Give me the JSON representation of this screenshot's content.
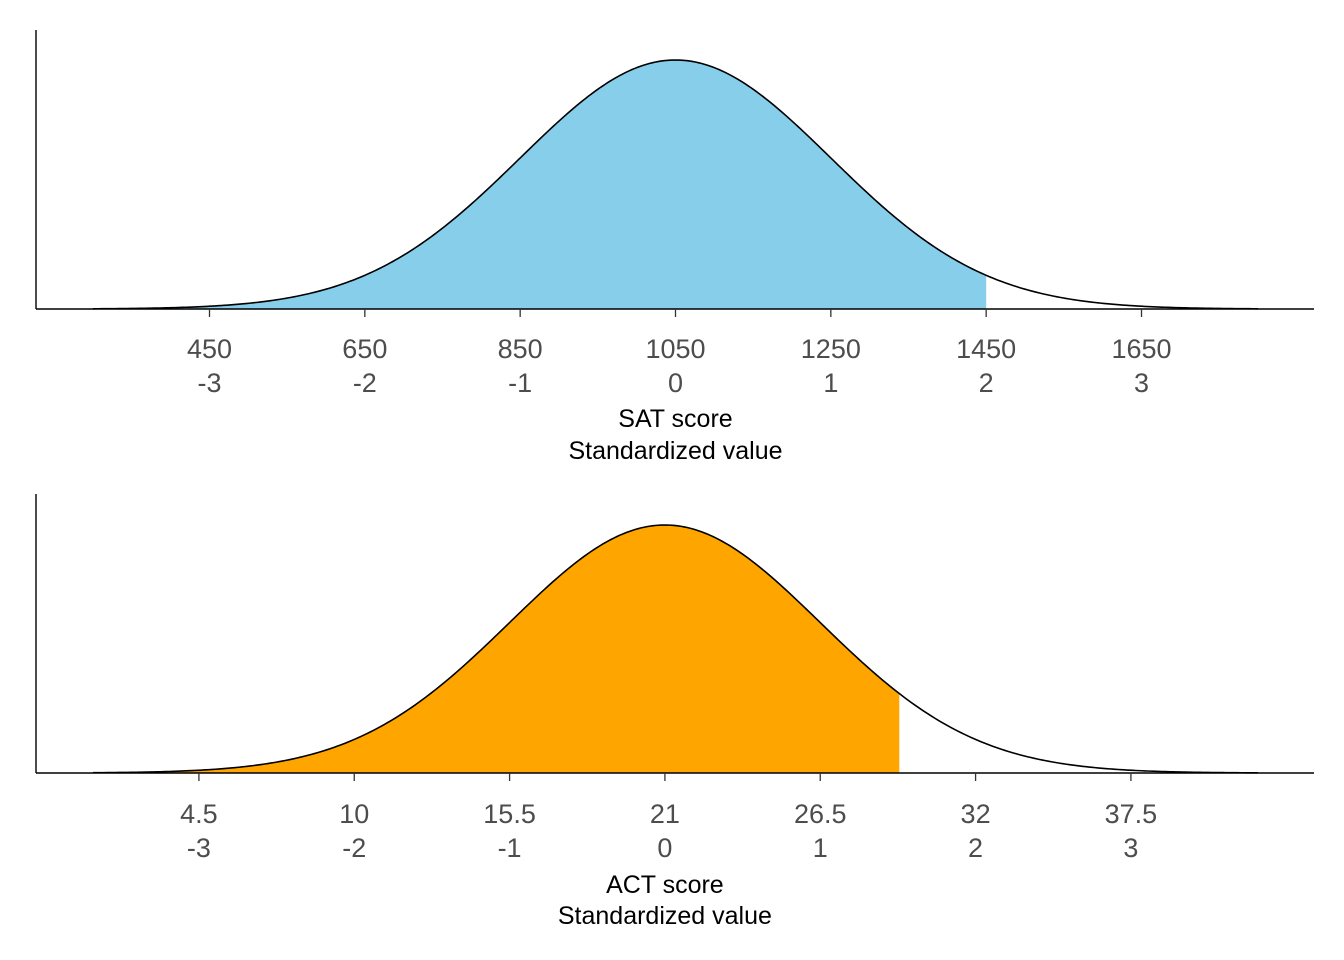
{
  "chart_data": [
    {
      "type": "area",
      "name": "sat-panel",
      "mean": 1050,
      "sd": 200,
      "xlim": [
        300,
        1800
      ],
      "shade_upper": 1450,
      "fill_color": "#87CEEB",
      "curve_color": "#000000",
      "ticks_primary": [
        "450",
        "650",
        "850",
        "1050",
        "1250",
        "1450",
        "1650"
      ],
      "tick_values": [
        450,
        650,
        850,
        1050,
        1250,
        1450,
        1650
      ],
      "ticks_standardized": [
        "-3",
        "-2",
        "-1",
        "0",
        "1",
        "2",
        "3"
      ],
      "xlabel_line1": "SAT score",
      "xlabel_line2": "Standardized value",
      "y_axis_labels": false
    },
    {
      "type": "area",
      "name": "act-panel",
      "mean": 21,
      "sd": 5.5,
      "xlim": [
        0.75,
        42
      ],
      "shade_upper": 29.3,
      "fill_color": "#FFA500",
      "curve_color": "#000000",
      "ticks_primary": [
        "4.5",
        "10",
        "15.5",
        "21",
        "26.5",
        "32",
        "37.5"
      ],
      "tick_values": [
        4.5,
        10,
        15.5,
        21,
        26.5,
        32,
        37.5
      ],
      "ticks_standardized": [
        "-3",
        "-2",
        "-1",
        "0",
        "1",
        "2",
        "3"
      ],
      "xlabel_line1": "ACT score",
      "xlabel_line2": "Standardized value",
      "y_axis_labels": false
    }
  ]
}
